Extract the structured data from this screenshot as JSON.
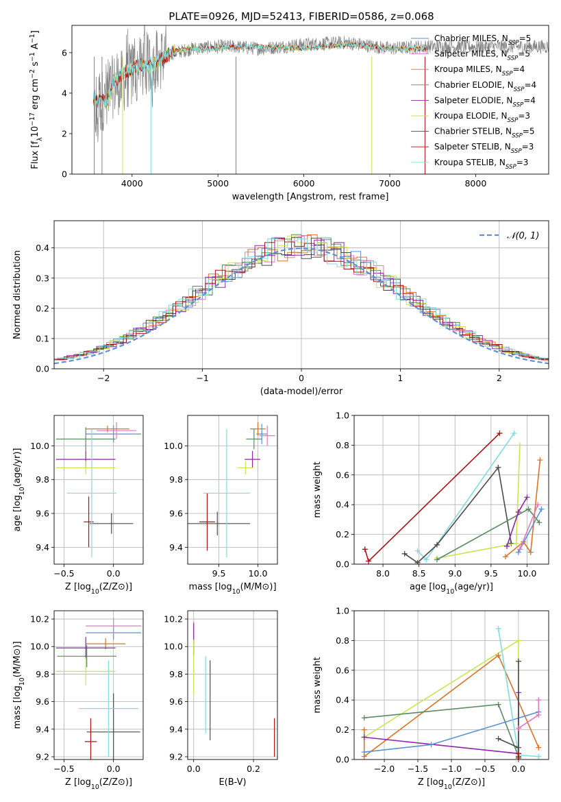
{
  "title": "PLATE=0926, MJD=52413, FIBERID=0586, z=0.068",
  "colors": {
    "chabrier_miles": "#5b8fd6",
    "salpeter_miles": "#e377c2",
    "kroupa_miles": "#e07020",
    "chabrier_elodie": "#5a8a60",
    "salpeter_elodie": "#8e24aa",
    "kroupa_elodie": "#c8e64a",
    "chabrier_stelib": "#4a4a4a",
    "salpeter_stelib": "#b01010",
    "kroupa_stelib": "#7fdde0",
    "grid": "#b0b0b0",
    "normal_curve": "#5b8fd6"
  },
  "chart_data": [
    {
      "id": "spectrum",
      "type": "line",
      "xlabel": "wavelength [Angstrom, rest frame]",
      "ylabel": "Flux [f_λ10^-17 erg cm^-2 s^-1 A^-1]",
      "xlim": [
        3300,
        8850
      ],
      "ylim": [
        0,
        7.35
      ],
      "xticks": [
        4000,
        5000,
        6000,
        7000,
        8000
      ],
      "yticks": [
        0,
        2,
        4,
        6
      ],
      "grid": false,
      "legend_position": "right",
      "legend": [
        {
          "label": "Chabrier MILES, N_SSP=5",
          "color_key": "chabrier_miles"
        },
        {
          "label": "Salpeter MILES, N_SSP=5",
          "color_key": "salpeter_miles"
        },
        {
          "label": "Kroupa MILES, N_SSP=4",
          "color_key": "kroupa_miles"
        },
        {
          "label": "Chabrier ELODIE, N_SSP=4",
          "color_key": "chabrier_elodie"
        },
        {
          "label": "Salpeter ELODIE, N_SSP=4",
          "color_key": "salpeter_elodie"
        },
        {
          "label": "Kroupa ELODIE, N_SSP=3",
          "color_key": "kroupa_elodie"
        },
        {
          "label": "Chabrier STELIB, N_SSP=5",
          "color_key": "chabrier_stelib"
        },
        {
          "label": "Salpeter STELIB, N_SSP=3",
          "color_key": "salpeter_stelib"
        },
        {
          "label": "Kroupa STELIB, N_SSP=3",
          "color_key": "kroupa_stelib"
        }
      ],
      "data_series": {
        "x": [
          3550,
          3600,
          3650,
          3700,
          3800,
          3900,
          4000,
          4100,
          4200,
          4300,
          4400,
          4500,
          4700,
          5000,
          5200,
          5500,
          6000,
          6500,
          7000,
          7400
        ],
        "y": [
          2.9,
          3.2,
          3.6,
          4.0,
          4.4,
          4.6,
          5.0,
          5.3,
          5.5,
          5.6,
          5.9,
          6.0,
          6.2,
          6.3,
          6.3,
          6.2,
          6.4,
          6.5,
          6.2,
          6.3
        ]
      },
      "model_series": {
        "x": [
          3550,
          3600,
          3650,
          3700,
          3800,
          3900,
          4000,
          4100,
          4200,
          4300,
          4400,
          4500,
          4700,
          5000,
          5200,
          5500,
          6000,
          6500,
          6800,
          7000,
          7400
        ],
        "y": [
          3.8,
          3.6,
          3.7,
          3.5,
          4.6,
          5.0,
          5.2,
          5.4,
          5.3,
          5.6,
          5.8,
          6.1,
          6.2,
          6.2,
          6.3,
          6.3,
          6.2,
          6.4,
          6.3,
          6.2,
          6.2
        ]
      },
      "absorption_drops": [
        3560,
        3650,
        3890,
        4220,
        5210,
        6790,
        7410
      ]
    },
    {
      "id": "residuals",
      "type": "bar",
      "xlabel": "(data-model)/error",
      "ylabel": "Normed distribution",
      "xlim": [
        -2.5,
        2.5
      ],
      "ylim": [
        0,
        0.49
      ],
      "xticks": [
        -2,
        -1,
        0,
        1,
        2
      ],
      "yticks": [
        0.0,
        0.1,
        0.2,
        0.3,
        0.4
      ],
      "grid": true,
      "legend_position": "top-right",
      "legend": [
        {
          "label": "𝒩(0, 1)",
          "color_key": "normal_curve"
        }
      ],
      "bin_width": 0.1,
      "bin_start": -2.5
    },
    {
      "id": "age_vs_Z",
      "type": "scatter",
      "xlabel": "Z [log10(Z/Z⊙)]",
      "ylabel": "age  [log10(age/yr)]",
      "xlim": [
        -0.6,
        0.3
      ],
      "ylim": [
        9.3,
        10.18
      ],
      "xticks": [
        -0.5,
        0.0
      ],
      "yticks": [
        9.4,
        9.6,
        9.8,
        10.0
      ],
      "grid": true,
      "points": [
        {
          "x": 0.0,
          "y": 10.07,
          "xerr": 0.28,
          "yerr": 0.05,
          "color_key": "chabrier_miles"
        },
        {
          "x": 0.03,
          "y": 10.09,
          "xerr": 0.2,
          "yerr": 0.05,
          "color_key": "salpeter_miles"
        },
        {
          "x": -0.06,
          "y": 10.1,
          "xerr": 0.22,
          "yerr": 0.02,
          "color_key": "kroupa_miles"
        },
        {
          "x": -0.28,
          "y": 10.04,
          "xerr": 0.3,
          "yerr": 0.07,
          "color_key": "chabrier_elodie"
        },
        {
          "x": -0.28,
          "y": 9.92,
          "xerr": 0.3,
          "yerr": 0.05,
          "color_key": "salpeter_elodie"
        },
        {
          "x": -0.28,
          "y": 9.87,
          "xerr": 0.3,
          "yerr": 0.04,
          "color_key": "kroupa_elodie"
        },
        {
          "x": -0.02,
          "y": 9.54,
          "xerr": 0.22,
          "yerr": 0.06,
          "color_key": "chabrier_stelib"
        },
        {
          "x": -0.25,
          "y": 9.55,
          "xerr": 0.05,
          "yerr": 0.15,
          "color_key": "salpeter_stelib"
        },
        {
          "x": -0.22,
          "y": 9.72,
          "xerr": 0.25,
          "yerr": 0.38,
          "color_key": "kroupa_stelib"
        }
      ]
    },
    {
      "id": "age_vs_mass",
      "type": "scatter",
      "xlabel": "mass [log10(M/M⊙)]",
      "ylabel": "",
      "xlim": [
        9.1,
        10.25
      ],
      "ylim": [
        9.3,
        10.18
      ],
      "xticks": [
        9.5,
        10.0
      ],
      "yticks": [
        9.4,
        9.6,
        9.8,
        10.0
      ],
      "grid": true,
      "points": [
        {
          "x": 10.05,
          "y": 10.07,
          "xerr": 0.07,
          "yerr": 0.06,
          "color_key": "chabrier_miles"
        },
        {
          "x": 10.12,
          "y": 10.06,
          "xerr": 0.1,
          "yerr": 0.06,
          "color_key": "salpeter_miles"
        },
        {
          "x": 10.0,
          "y": 10.1,
          "xerr": 0.1,
          "yerr": 0.04,
          "color_key": "kroupa_miles"
        },
        {
          "x": 9.95,
          "y": 10.04,
          "xerr": 0.1,
          "yerr": 0.06,
          "color_key": "chabrier_elodie"
        },
        {
          "x": 9.93,
          "y": 9.92,
          "xerr": 0.1,
          "yerr": 0.05,
          "color_key": "salpeter_elodie"
        },
        {
          "x": 9.84,
          "y": 9.87,
          "xerr": 0.1,
          "yerr": 0.04,
          "color_key": "kroupa_elodie"
        },
        {
          "x": 9.48,
          "y": 9.54,
          "xerr": 0.42,
          "yerr": 0.07,
          "color_key": "chabrier_stelib"
        },
        {
          "x": 9.35,
          "y": 9.55,
          "xerr": 0.1,
          "yerr": 0.17,
          "color_key": "salpeter_stelib"
        },
        {
          "x": 9.6,
          "y": 9.72,
          "xerr": 0.3,
          "yerr": 0.38,
          "color_key": "kroupa_stelib"
        }
      ]
    },
    {
      "id": "weight_vs_age",
      "type": "line",
      "xlabel": "age  [log10(age/yr)]",
      "ylabel": "mass weight",
      "xlim": [
        7.6,
        10.3
      ],
      "ylim": [
        0,
        1.0
      ],
      "xticks": [
        8.0,
        8.5,
        9.0,
        9.5,
        10.0
      ],
      "yticks": [
        0.0,
        0.2,
        0.4,
        0.6,
        0.8,
        1.0
      ],
      "grid": true,
      "series": [
        {
          "color_key": "salpeter_stelib",
          "x": [
            7.75,
            7.8,
            9.62
          ],
          "y": [
            0.1,
            0.02,
            0.88
          ]
        },
        {
          "color_key": "kroupa_stelib",
          "x": [
            8.48,
            8.6,
            9.82
          ],
          "y": [
            0.09,
            0.03,
            0.88
          ]
        },
        {
          "color_key": "chabrier_stelib",
          "x": [
            8.3,
            8.48,
            8.75,
            9.6,
            9.78
          ],
          "y": [
            0.07,
            0.01,
            0.13,
            0.65,
            0.14
          ]
        },
        {
          "color_key": "kroupa_elodie",
          "x": [
            8.75,
            9.85,
            9.9
          ],
          "y": [
            0.04,
            0.14,
            0.8
          ]
        },
        {
          "color_key": "chabrier_elodie",
          "x": [
            8.75,
            10.02,
            10.17
          ],
          "y": [
            0.03,
            0.37,
            0.28
          ]
        },
        {
          "color_key": "salpeter_elodie",
          "x": [
            9.72,
            9.88,
            10.0
          ],
          "y": [
            0.12,
            0.35,
            0.45
          ]
        },
        {
          "color_key": "kroupa_miles",
          "x": [
            9.7,
            9.95,
            10.05,
            10.18
          ],
          "y": [
            0.05,
            0.15,
            0.08,
            0.7
          ]
        },
        {
          "color_key": "chabrier_miles",
          "x": [
            9.88,
            10.2
          ],
          "y": [
            0.08,
            0.37
          ]
        },
        {
          "color_key": "salpeter_miles",
          "x": [
            9.9,
            10.15
          ],
          "y": [
            0.1,
            0.4
          ]
        }
      ]
    },
    {
      "id": "mass_vs_Z",
      "type": "scatter",
      "xlabel": "Z [log10(Z/Z⊙)]",
      "ylabel": "mass [log10(M/M⊙)]",
      "xlim": [
        -0.6,
        0.3
      ],
      "ylim": [
        9.18,
        10.26
      ],
      "xticks": [
        -0.5,
        0.0
      ],
      "yticks": [
        9.2,
        9.4,
        9.6,
        9.8,
        10.0,
        10.2
      ],
      "grid": true,
      "points": [
        {
          "x": 0.0,
          "y": 10.1,
          "xerr": 0.28,
          "yerr": 0.05,
          "color_key": "chabrier_miles"
        },
        {
          "x": 0.0,
          "y": 10.15,
          "xerr": 0.28,
          "yerr": 0.06,
          "color_key": "salpeter_miles"
        },
        {
          "x": -0.08,
          "y": 10.02,
          "xerr": 0.2,
          "yerr": 0.04,
          "color_key": "kroupa_miles"
        },
        {
          "x": -0.27,
          "y": 9.93,
          "xerr": 0.3,
          "yerr": 0.08,
          "color_key": "chabrier_elodie"
        },
        {
          "x": -0.28,
          "y": 9.99,
          "xerr": 0.3,
          "yerr": 0.08,
          "color_key": "salpeter_elodie"
        },
        {
          "x": -0.28,
          "y": 9.82,
          "xerr": 0.3,
          "yerr": 0.1,
          "color_key": "kroupa_elodie"
        },
        {
          "x": 0.0,
          "y": 9.38,
          "xerr": 0.27,
          "yerr": 0.28,
          "color_key": "chabrier_stelib"
        },
        {
          "x": -0.23,
          "y": 9.31,
          "xerr": 0.06,
          "yerr": 0.17,
          "color_key": "salpeter_stelib"
        },
        {
          "x": -0.05,
          "y": 9.55,
          "xerr": 0.3,
          "yerr": 0.35,
          "color_key": "kroupa_stelib"
        }
      ]
    },
    {
      "id": "mass_vs_ebv",
      "type": "scatter",
      "xlabel": "E(B-V)",
      "ylabel": "",
      "xlim": [
        -0.02,
        0.28
      ],
      "ylim": [
        9.18,
        10.26
      ],
      "xticks": [
        0.0,
        0.2
      ],
      "yticks": [
        9.2,
        9.4,
        9.6,
        9.8,
        10.0,
        10.2
      ],
      "grid": true,
      "points": [
        {
          "x": 0.0,
          "y": 10.1,
          "yerr": 0.08,
          "color_key": "salpeter_miles"
        },
        {
          "x": 0.0,
          "y": 10.05,
          "yerr": 0.12,
          "color_key": "salpeter_elodie"
        },
        {
          "x": 0.0,
          "y": 9.85,
          "yerr": 0.2,
          "color_key": "kroupa_elodie"
        },
        {
          "x": 0.04,
          "y": 9.65,
          "yerr": 0.28,
          "color_key": "kroupa_stelib"
        },
        {
          "x": 0.055,
          "y": 9.61,
          "yerr": 0.29,
          "color_key": "chabrier_stelib"
        },
        {
          "x": 0.27,
          "y": 9.34,
          "yerr": 0.14,
          "color_key": "salpeter_stelib"
        }
      ]
    },
    {
      "id": "weight_vs_Z",
      "type": "line",
      "xlabel": "Z [log10(Z/Z⊙)]",
      "ylabel": "mass weight",
      "xlim": [
        -2.45,
        0.45
      ],
      "ylim": [
        0,
        1.0
      ],
      "xticks": [
        -2.0,
        -1.5,
        -1.0,
        -0.5,
        0.0
      ],
      "yticks": [
        0.0,
        0.2,
        0.4,
        0.6,
        0.8,
        1.0
      ],
      "grid": true,
      "series": [
        {
          "color_key": "kroupa_elodie",
          "x": [
            -2.3,
            0.0,
            0.0
          ],
          "y": [
            0.15,
            0.8,
            0.04
          ]
        },
        {
          "color_key": "kroupa_miles",
          "x": [
            -2.3,
            -2.3,
            -0.3,
            0.3
          ],
          "y": [
            0.2,
            0.02,
            0.7,
            0.08
          ]
        },
        {
          "color_key": "chabrier_elodie",
          "x": [
            -2.3,
            -0.3,
            0.0
          ],
          "y": [
            0.28,
            0.37,
            0.02
          ]
        },
        {
          "color_key": "salpeter_elodie",
          "x": [
            -2.3,
            0.0,
            0.0
          ],
          "y": [
            0.15,
            0.04,
            0.45
          ]
        },
        {
          "color_key": "chabrier_miles",
          "x": [
            -2.3,
            -1.3,
            0.3
          ],
          "y": [
            0.05,
            0.1,
            0.32
          ]
        },
        {
          "color_key": "kroupa_stelib",
          "x": [
            -0.3,
            0.0,
            0.3
          ],
          "y": [
            0.88,
            0.03,
            0.02
          ]
        },
        {
          "color_key": "chabrier_stelib",
          "x": [
            -0.3,
            0.0,
            0.0,
            0.0
          ],
          "y": [
            0.14,
            0.08,
            0.66,
            0.02
          ]
        },
        {
          "color_key": "salpeter_miles",
          "x": [
            0.0,
            0.3,
            0.3
          ],
          "y": [
            0.21,
            0.3,
            0.4
          ]
        },
        {
          "color_key": "salpeter_stelib",
          "x": [
            0.0,
            0.0
          ],
          "y": [
            0.01,
            0.04
          ]
        }
      ]
    }
  ]
}
